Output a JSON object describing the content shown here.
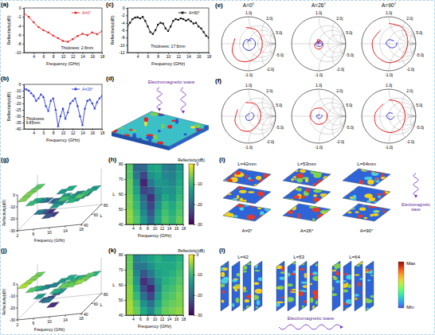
{
  "chart_data": [
    {
      "type": "line",
      "panel": "(a)",
      "xlabel": "Frequency (GHz)",
      "ylabel": "Reflectivity(dB)",
      "annotation": "Thickness: 2.6mm",
      "x": [
        2,
        3,
        4,
        5,
        6,
        7,
        8,
        9,
        10,
        11,
        12,
        13,
        14,
        15,
        16,
        17,
        18
      ],
      "series": [
        {
          "name": "A=0°",
          "color": "#e8262b",
          "marker": "circle",
          "values": [
            -1.2,
            -2,
            -3.2,
            -4.3,
            -5,
            -5.5,
            -6.2,
            -6.8,
            -7.4,
            -7.6,
            -7,
            -6.3,
            -5.8,
            -6.1,
            -5.5,
            -5.9,
            -5.2
          ]
        }
      ],
      "xlim": [
        2,
        18
      ],
      "xticks": [
        4,
        6,
        8,
        10,
        12,
        14,
        16,
        18
      ],
      "ylim": [
        -10,
        0
      ],
      "yticks": [
        0,
        -2,
        -4,
        -6,
        -8,
        -10
      ],
      "legend": "upper right"
    },
    {
      "type": "line",
      "panel": "(b)",
      "xlabel": "Frequency (GHz)",
      "ylabel": "Reflectivity(dB)",
      "annotation": "Thickness: 9.85mm",
      "x": [
        2,
        2.5,
        3,
        3.5,
        4,
        4.5,
        5,
        5.5,
        6,
        6.5,
        7,
        7.5,
        8,
        8.5,
        9,
        9.5,
        10,
        10.5,
        11,
        11.5,
        12,
        12.5,
        13,
        13.5,
        14,
        14.5,
        15,
        15.5,
        16,
        16.5,
        17,
        17.5,
        18
      ],
      "series": [
        {
          "name": "A=26°",
          "color": "#2f3fd6",
          "marker": "triangle",
          "values": [
            -8,
            -9,
            -10,
            -12,
            -14,
            -18,
            -16,
            -13,
            -15,
            -22,
            -26,
            -18,
            -16,
            -25,
            -38,
            -30,
            -24,
            -32,
            -27,
            -20,
            -18,
            -16,
            -22,
            -30,
            -37,
            -24,
            -18,
            -17,
            -20,
            -24,
            -19,
            -16,
            -14
          ]
        }
      ],
      "xlim": [
        2,
        18
      ],
      "xticks": [
        4,
        6,
        8,
        10,
        12,
        14,
        16,
        18
      ],
      "ylim": [
        -40,
        -5
      ],
      "yticks": [
        -5,
        -10,
        -15,
        -20,
        -25,
        -30,
        -35,
        -40
      ],
      "legend": "upper right"
    },
    {
      "type": "line",
      "panel": "(c)",
      "xlabel": "Frequency (GHz)",
      "ylabel": "Reflectivity(dB)",
      "annotation": "Thickness: 17.6mm",
      "x": [
        2,
        2.5,
        3,
        3.5,
        4,
        4.5,
        5,
        5.5,
        6,
        6.5,
        7,
        7.5,
        8,
        8.5,
        9,
        9.5,
        10,
        10.5,
        11,
        11.5,
        12,
        12.5,
        13,
        13.5,
        14,
        14.5,
        15,
        15.5,
        16,
        16.5,
        17,
        17.5,
        18
      ],
      "series": [
        {
          "name": "A=90°",
          "color": "#111111",
          "marker": "square",
          "values": [
            -5,
            -4,
            -3,
            -2.6,
            -2.5,
            -2.8,
            -2.4,
            -3.5,
            -5,
            -6.5,
            -7,
            -6,
            -4.5,
            -4,
            -4.2,
            -5.5,
            -6.2,
            -5,
            -3.5,
            -3,
            -3.2,
            -2.8,
            -3,
            -3.4,
            -3.1,
            -3.6,
            -4.2,
            -4,
            -5,
            -5.5,
            -6.5,
            -7.5,
            -8
          ]
        }
      ],
      "xlim": [
        2,
        18
      ],
      "xticks": [
        4,
        6,
        8,
        10,
        12,
        14,
        16,
        18
      ],
      "ylim": [
        -12,
        0
      ],
      "yticks": [
        0,
        -2,
        -4,
        -6,
        -8,
        -10,
        -12
      ],
      "legend": "upper right"
    },
    {
      "type": "diagram",
      "panel": "(d)",
      "wave_label": "Electromagnetic wave"
    },
    {
      "type": "smith",
      "panel": "(e)",
      "reactance_ticks": [
        {
          "value": 1,
          "label": "1.0j"
        },
        {
          "value": 2,
          "label": "2.0j"
        },
        {
          "value": 5,
          "label": "5.0j"
        },
        {
          "value": -5,
          "label": "-5.0j"
        },
        {
          "value": -2,
          "label": "-2.0j"
        },
        {
          "value": -1,
          "label": "-1.0j"
        }
      ],
      "charts": [
        {
          "title": "A=0°",
          "series": [
            {
              "color": "#e41a1c",
              "re": [
                -0.5,
                -0.6,
                -0.4,
                0,
                0.4,
                0.5,
                0.3,
                -0.1
              ],
              "im": [
                0.2,
                -0.3,
                -0.6,
                -0.65,
                -0.4,
                0.1,
                0.5,
                0.6
              ]
            },
            {
              "color": "#3333cc",
              "re": [
                0.1,
                -0.1,
                -0.2,
                0,
                0.2,
                0.25,
                0.1,
                -0.05
              ],
              "im": [
                0.1,
                0.15,
                -0.1,
                -0.25,
                -0.15,
                0.05,
                0.2,
                0.05
              ]
            }
          ]
        },
        {
          "title": "A=26°",
          "series": [
            {
              "color": "#e41a1c",
              "re": [
                0.05,
                -0.1,
                -0.15,
                0,
                0.15,
                0.1,
                -0.05,
                0
              ],
              "im": [
                0.1,
                0.05,
                -0.1,
                -0.2,
                -0.1,
                0.1,
                0.15,
                0
              ]
            },
            {
              "color": "#3333cc",
              "re": [
                0.1,
                -0.05,
                -0.1,
                0.05,
                0.15,
                0.05,
                -0.05,
                0.02
              ],
              "im": [
                0,
                0.05,
                -0.05,
                -0.1,
                0,
                0.08,
                0.02,
                -0.02
              ]
            }
          ]
        },
        {
          "title": "A=90°",
          "series": [
            {
              "color": "#e41a1c",
              "re": [
                -0.3,
                -0.6,
                -0.5,
                0,
                0.5,
                0.7,
                0.5,
                0
              ],
              "im": [
                0.5,
                0.1,
                -0.4,
                -0.7,
                -0.5,
                0.1,
                0.6,
                0.75
              ]
            },
            {
              "color": "#3333cc",
              "re": [
                0.2,
                0,
                -0.1,
                0.1,
                0.25,
                0.3
              ],
              "im": [
                0.1,
                0.15,
                0,
                -0.15,
                -0.1,
                0.05
              ]
            }
          ]
        }
      ]
    },
    {
      "type": "smith",
      "panel": "(f)",
      "reactance_ticks": [
        {
          "value": 1,
          "label": "1.0j"
        },
        {
          "value": 2,
          "label": "2.0j"
        },
        {
          "value": 5,
          "label": "5.0j"
        },
        {
          "value": -5,
          "label": "-5.0j"
        },
        {
          "value": -2,
          "label": "-2.0j"
        },
        {
          "value": -1,
          "label": "-1.0j"
        }
      ],
      "charts": [
        {
          "series": [
            {
              "color": "#e41a1c",
              "re": [
                -0.4,
                -0.5,
                -0.3,
                0.05,
                0.35,
                0.45,
                0.25,
                -0.1
              ],
              "im": [
                0.25,
                -0.2,
                -0.5,
                -0.55,
                -0.3,
                0.1,
                0.45,
                0.5
              ]
            },
            {
              "color": "#3333cc",
              "re": [
                0.05,
                -0.1,
                -0.05,
                0.12,
                0.2,
                0.08
              ],
              "im": [
                0.1,
                0,
                -0.15,
                -0.12,
                0.05,
                0.15
              ]
            }
          ]
        },
        {
          "series": [
            {
              "color": "#e41a1c",
              "re": [
                0.1,
                -0.2,
                -0.3,
                -0.05,
                0.25,
                0.3,
                0.1
              ],
              "im": [
                0.3,
                0.25,
                -0.05,
                -0.3,
                -0.2,
                0.1,
                0.3
              ]
            },
            {
              "color": "#3333cc",
              "re": [
                0.05,
                -0.08,
                -0.02,
                0.1,
                0.12
              ],
              "im": [
                0.05,
                0.02,
                -0.08,
                -0.05,
                0.06
              ]
            }
          ]
        },
        {
          "series": [
            {
              "color": "#e41a1c",
              "re": [
                -0.2,
                -0.5,
                -0.45,
                0,
                0.45,
                0.6,
                0.4,
                0
              ],
              "im": [
                0.45,
                0.1,
                -0.35,
                -0.6,
                -0.45,
                0.05,
                0.5,
                0.6
              ]
            },
            {
              "color": "#3333cc",
              "re": [
                0.15,
                0,
                -0.08,
                0.08,
                0.2
              ],
              "im": [
                0.1,
                0.12,
                -0.02,
                -0.12,
                -0.02
              ]
            }
          ]
        }
      ]
    },
    {
      "type": "surface",
      "panel": "(g)",
      "xlabel": "Frequency (GHz)",
      "ylabel": "L",
      "zlabel": "Reflectivity(dB)",
      "xbins": [
        2,
        4,
        6,
        8,
        10,
        12,
        14,
        16,
        18
      ],
      "ybins": [
        40,
        50,
        60,
        70,
        80
      ],
      "cells": [
        [
          -6,
          -10,
          -18,
          -22,
          -14,
          -9,
          -11,
          -8
        ],
        [
          -6,
          -12,
          -22,
          -25,
          -16,
          -12,
          -14,
          -10
        ],
        [
          -7,
          -16,
          -26,
          -18,
          -14,
          -15,
          -16,
          -12
        ],
        [
          -8,
          -20,
          -21,
          -14,
          -12,
          -17,
          -18,
          -14
        ]
      ],
      "xlim": [
        2,
        18
      ],
      "xticks": [
        2,
        6,
        10,
        14,
        18
      ],
      "ylim": [
        40,
        80
      ],
      "yticks": [
        40,
        60,
        80
      ],
      "zlim": [
        -30,
        0
      ],
      "zticks": [
        0,
        -10,
        -20,
        -30
      ]
    },
    {
      "type": "heatmap",
      "panel": "(h)",
      "xlabel": "Frequency (GHz)",
      "ylabel": "L",
      "colorbar_label": "Reflectivity(dB)",
      "xbins": [
        2,
        4,
        6,
        8,
        10,
        12,
        14,
        16,
        18
      ],
      "ybins": [
        40,
        45,
        50,
        55,
        60,
        65,
        70,
        75,
        80
      ],
      "cells": [
        [
          -5,
          -8,
          -14,
          -20,
          -12,
          -8,
          -10,
          -7
        ],
        [
          -5,
          -9,
          -16,
          -22,
          -13,
          -9,
          -11,
          -8
        ],
        [
          -6,
          -10,
          -18,
          -24,
          -15,
          -10,
          -12,
          -9
        ],
        [
          -6,
          -11,
          -20,
          -26,
          -17,
          -12,
          -14,
          -10
        ],
        [
          -7,
          -13,
          -24,
          -22,
          -16,
          -14,
          -15,
          -11
        ],
        [
          -7,
          -15,
          -27,
          -18,
          -14,
          -15,
          -16,
          -12
        ],
        [
          -8,
          -18,
          -24,
          -15,
          -13,
          -16,
          -17,
          -13
        ],
        [
          -8,
          -20,
          -20,
          -13,
          -12,
          -17,
          -18,
          -14
        ]
      ],
      "xlim": [
        2,
        18
      ],
      "xticks": [
        4,
        6,
        8,
        10,
        12,
        14,
        16,
        18
      ],
      "ylim": [
        40,
        80
      ],
      "yticks": [
        40,
        50,
        60,
        70,
        80
      ],
      "colorbar_range": [
        -30,
        0
      ],
      "colorbar_ticks": [
        0,
        -10,
        -20,
        -30
      ]
    },
    {
      "type": "diagram",
      "panel": "(i)",
      "lengths": [
        "L=42mm",
        "L=53mm",
        "L=64mm"
      ],
      "angles": [
        "A=0°",
        "A=26°",
        "A=90°"
      ],
      "wave_label": "Electromagnetic wave"
    },
    {
      "type": "surface",
      "panel": "(j)",
      "xlabel": "Frequency (GHz)",
      "ylabel": "L",
      "zlabel": "Reflectivity(dB)",
      "xbins": [
        2,
        4,
        6,
        8,
        10,
        12,
        14,
        16,
        18
      ],
      "ybins": [
        40,
        50,
        60,
        70,
        80
      ],
      "cells": [
        [
          -4,
          -8,
          -14,
          -18,
          -11,
          -7,
          -7,
          -5
        ],
        [
          -5,
          -11,
          -21,
          -26,
          -15,
          -9,
          -9,
          -7
        ],
        [
          -6,
          -15,
          -24,
          -20,
          -14,
          -11,
          -10,
          -8
        ],
        [
          -7,
          -18,
          -17,
          -14,
          -12,
          -13,
          -13,
          -11
        ]
      ],
      "xlim": [
        2,
        18
      ],
      "xticks": [
        2,
        6,
        10,
        14,
        18
      ],
      "ylim": [
        40,
        80
      ],
      "yticks": [
        40,
        60,
        80
      ],
      "zlim": [
        -30,
        0
      ],
      "zticks": [
        0,
        -10,
        -20,
        -30
      ]
    },
    {
      "type": "heatmap",
      "panel": "(k)",
      "xlabel": "Frequency (GHz)",
      "ylabel": "L",
      "colorbar_label": "Reflectivity(dB)",
      "xbins": [
        2,
        4,
        6,
        8,
        10,
        12,
        14,
        16,
        18
      ],
      "ybins": [
        40,
        45,
        50,
        55,
        60,
        65,
        70,
        75,
        80
      ],
      "cells": [
        [
          -4,
          -7,
          -12,
          -16,
          -10,
          -7,
          -6,
          -5
        ],
        [
          -4,
          -8,
          -15,
          -19,
          -12,
          -8,
          -7,
          -6
        ],
        [
          -5,
          -10,
          -19,
          -24,
          -14,
          -9,
          -8,
          -6
        ],
        [
          -5,
          -12,
          -23,
          -27,
          -16,
          -10,
          -9,
          -7
        ],
        [
          -6,
          -14,
          -26,
          -22,
          -15,
          -11,
          -10,
          -8
        ],
        [
          -6,
          -16,
          -22,
          -18,
          -13,
          -12,
          -11,
          -9
        ],
        [
          -7,
          -18,
          -18,
          -15,
          -12,
          -12,
          -12,
          -10
        ],
        [
          -7,
          -17,
          -15,
          -13,
          -11,
          -13,
          -13,
          -11
        ]
      ],
      "xlim": [
        2,
        18
      ],
      "xticks": [
        4,
        6,
        8,
        10,
        12,
        14,
        16,
        18
      ],
      "ylim": [
        40,
        80
      ],
      "yticks": [
        40,
        50,
        60,
        70,
        80
      ],
      "colorbar_range": [
        -30,
        0
      ],
      "colorbar_ticks": [
        0,
        -10,
        -20,
        -30
      ]
    },
    {
      "type": "diagram",
      "panel": "(l)",
      "lengths": [
        "L=42",
        "L=53",
        "L=64"
      ],
      "wave_label": "Electromagnetic wave",
      "scale_labels": [
        "Max",
        "Min"
      ]
    }
  ]
}
